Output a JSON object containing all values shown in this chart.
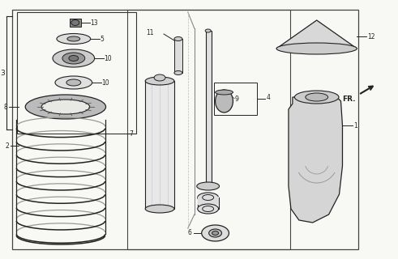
{
  "bg_color": "#f8f8f5",
  "line_color": "#222222",
  "fig_width": 4.91,
  "fig_height": 3.2,
  "dpi": 100
}
